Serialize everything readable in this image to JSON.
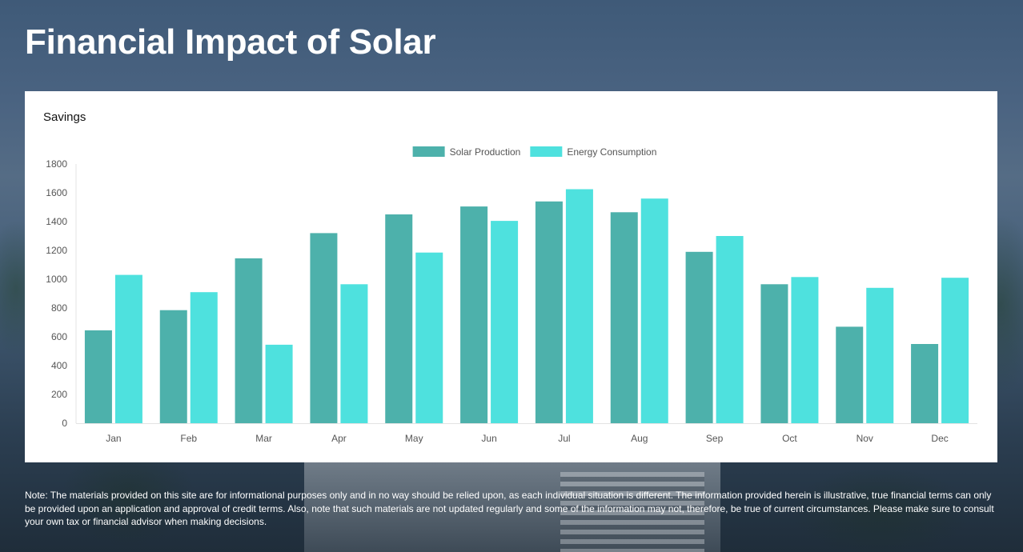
{
  "page": {
    "title": "Financial Impact of Solar",
    "note": "Note: The materials provided on this site are for informational purposes only and in no way should be relied upon, as each individual situation is different. The information provided herein is illustrative, true financial terms can only be provided upon an application and approval of credit terms. Also, note that such materials are not updated regularly and some of the information may not, therefore, be true of current circumstances. Please make sure to consult your own tax or financial advisor when making decisions."
  },
  "card": {
    "title": "Savings"
  },
  "colors": {
    "solar_production": "#4db1ab",
    "energy_consumption": "#4ee1de"
  },
  "chart_data": {
    "type": "bar",
    "title": "Savings",
    "xlabel": "",
    "ylabel": "",
    "ylim": [
      0,
      1800
    ],
    "yticks": [
      0,
      200,
      400,
      600,
      800,
      1000,
      1200,
      1400,
      1600,
      1800
    ],
    "legend_position": "top-center",
    "grid": false,
    "categories": [
      "Jan",
      "Feb",
      "Mar",
      "Apr",
      "May",
      "Jun",
      "Jul",
      "Aug",
      "Sep",
      "Oct",
      "Nov",
      "Dec"
    ],
    "series": [
      {
        "name": "Solar Production",
        "color": "#4db1ab",
        "values": [
          645,
          785,
          1145,
          1320,
          1450,
          1505,
          1540,
          1465,
          1190,
          965,
          670,
          550
        ]
      },
      {
        "name": "Energy Consumption",
        "color": "#4ee1de",
        "values": [
          1030,
          910,
          545,
          965,
          1185,
          1405,
          1625,
          1560,
          1300,
          1015,
          940,
          1010
        ]
      }
    ]
  }
}
